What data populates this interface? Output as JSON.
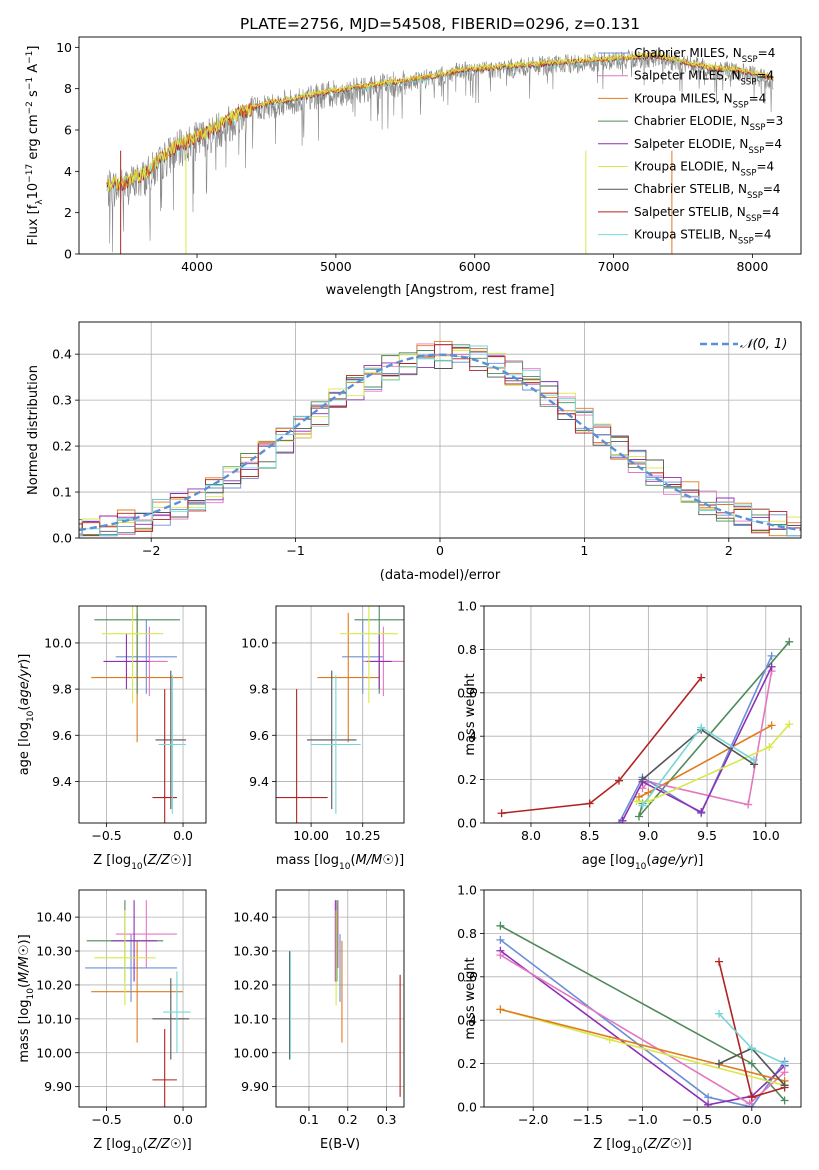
{
  "figure_title": "PLATE=2756, MJD=54508, FIBERID=0296, z=0.131",
  "colors": {
    "Chabrier MILES": "#6b8fd6",
    "Salpeter MILES": "#e377c2",
    "Kroupa MILES": "#e07b1f",
    "Chabrier ELODIE": "#4f8a5a",
    "Salpeter ELODIE": "#8e2fb4",
    "Kroupa ELODIE": "#d8e84a",
    "Chabrier STELIB": "#555555",
    "Salpeter STELIB": "#b22222",
    "Kroupa STELIB": "#76d7d7",
    "data": "#888888",
    "normal": "#5b8fd8"
  },
  "chart_data": [
    {
      "id": "spectrum",
      "type": "line",
      "title": "PLATE=2756, MJD=54508, FIBERID=0296, z=0.131",
      "xlabel": "wavelength [Angstrom, rest frame]",
      "ylabel": "Flux [fλ10⁻¹⁷ erg cm⁻² s⁻¹ A⁻¹]",
      "xlim": [
        3150,
        8350
      ],
      "ylim": [
        0,
        10.5
      ],
      "xticks": [
        4000,
        5000,
        6000,
        7000,
        8000
      ],
      "yticks": [
        0,
        2,
        4,
        6,
        8,
        10
      ],
      "continuum_x": [
        3350,
        3500,
        3650,
        3800,
        3950,
        4100,
        4300,
        4500,
        4700,
        4900,
        5100,
        5300,
        5500,
        5700,
        5900,
        6100,
        6300,
        6500,
        6700,
        6900,
        7100,
        7300,
        7500,
        7700,
        7900,
        8150
      ],
      "continuum_y": [
        3.3,
        3.5,
        4.0,
        5.0,
        5.5,
        6.0,
        6.8,
        7.3,
        7.5,
        7.8,
        8.0,
        8.2,
        8.4,
        8.6,
        8.9,
        9.0,
        9.1,
        9.2,
        9.3,
        9.4,
        9.5,
        9.6,
        9.3,
        9.0,
        8.9,
        8.5
      ],
      "legend": [
        {
          "label": "Chabrier MILES, N",
          "sub": "SSP",
          "tail": "=4",
          "key": "Chabrier MILES"
        },
        {
          "label": "Salpeter MILES, N",
          "sub": "SSP",
          "tail": "=4",
          "key": "Salpeter MILES"
        },
        {
          "label": "Kroupa MILES, N",
          "sub": "SSP",
          "tail": "=4",
          "key": "Kroupa MILES"
        },
        {
          "label": "Chabrier ELODIE, N",
          "sub": "SSP",
          "tail": "=3",
          "key": "Chabrier ELODIE"
        },
        {
          "label": "Salpeter ELODIE, N",
          "sub": "SSP",
          "tail": "=4",
          "key": "Salpeter ELODIE"
        },
        {
          "label": "Kroupa ELODIE, N",
          "sub": "SSP",
          "tail": "=4",
          "key": "Kroupa ELODIE"
        },
        {
          "label": "Chabrier STELIB, N",
          "sub": "SSP",
          "tail": "=4",
          "key": "Chabrier STELIB"
        },
        {
          "label": "Salpeter STELIB, N",
          "sub": "SSP",
          "tail": "=4",
          "key": "Salpeter STELIB"
        },
        {
          "label": "Kroupa STELIB, N",
          "sub": "SSP",
          "tail": "=4",
          "key": "Kroupa STELIB"
        }
      ],
      "grid": false,
      "legend_position": "top-right"
    },
    {
      "id": "residuals",
      "type": "line",
      "xlabel": "(data-model)/error",
      "ylabel": "Normed distribution",
      "xlim": [
        -2.5,
        2.5
      ],
      "ylim": [
        0,
        0.47
      ],
      "xticks": [
        -2,
        -1,
        0,
        1,
        2
      ],
      "yticks": [
        0.0,
        0.1,
        0.2,
        0.3,
        0.4
      ],
      "legend": "𝒩(0, 1)",
      "grid": true,
      "legend_position": "top-right"
    },
    {
      "id": "age_vs_Z",
      "type": "scatter",
      "xlabel": "Z [log10(Z/Z☉)]",
      "ylabel": "age  [log10(age/yr)]",
      "xlim": [
        -0.68,
        0.15
      ],
      "ylim": [
        9.22,
        10.16
      ],
      "xticks": [
        -0.5,
        0.0
      ],
      "yticks": [
        9.4,
        9.6,
        9.8,
        10.0
      ],
      "grid": true,
      "points": [
        {
          "key": "Chabrier MILES",
          "x": -0.24,
          "xerr": 0.2,
          "y": 9.94,
          "yerr": 0.16
        },
        {
          "key": "Salpeter MILES",
          "x": -0.22,
          "xerr": 0.12,
          "y": 9.92,
          "yerr": 0.15
        },
        {
          "key": "Kroupa MILES",
          "x": -0.3,
          "xerr": 0.3,
          "y": 9.85,
          "yerr": 0.28
        },
        {
          "key": "Chabrier ELODIE",
          "x": -0.3,
          "xerr": 0.28,
          "y": 10.1,
          "yerr": 0.32
        },
        {
          "key": "Salpeter ELODIE",
          "x": -0.37,
          "xerr": 0.15,
          "y": 9.92,
          "yerr": 0.12
        },
        {
          "key": "Kroupa ELODIE",
          "x": -0.33,
          "xerr": 0.2,
          "y": 10.04,
          "yerr": 0.3
        },
        {
          "key": "Chabrier STELIB",
          "x": -0.08,
          "xerr": 0.1,
          "y": 9.58,
          "yerr": 0.3
        },
        {
          "key": "Salpeter STELIB",
          "x": -0.12,
          "xerr": 0.08,
          "y": 9.33,
          "yerr": 0.47
        },
        {
          "key": "Kroupa STELIB",
          "x": -0.07,
          "xerr": 0.09,
          "y": 9.56,
          "yerr": 0.3
        }
      ]
    },
    {
      "id": "age_vs_mass",
      "type": "scatter",
      "xlabel": "mass [log10(M/M☉)]",
      "ylabel": "",
      "xlim": [
        9.83,
        10.45
      ],
      "ylim": [
        9.22,
        10.16
      ],
      "xticks": [
        10.0,
        10.25
      ],
      "yticks": [
        9.4,
        9.6,
        9.8,
        10.0
      ],
      "grid": true,
      "points": [
        {
          "key": "Chabrier MILES",
          "x": 10.25,
          "xerr": 0.1,
          "y": 9.94,
          "yerr": 0.16
        },
        {
          "key": "Salpeter MILES",
          "x": 10.35,
          "xerr": 0.1,
          "y": 9.92,
          "yerr": 0.15
        },
        {
          "key": "Kroupa MILES",
          "x": 10.18,
          "xerr": 0.15,
          "y": 9.85,
          "yerr": 0.28
        },
        {
          "key": "Chabrier ELODIE",
          "x": 10.33,
          "xerr": 0.12,
          "y": 10.1,
          "yerr": 0.32
        },
        {
          "key": "Salpeter ELODIE",
          "x": 10.33,
          "xerr": 0.06,
          "y": 9.92,
          "yerr": 0.12
        },
        {
          "key": "Kroupa ELODIE",
          "x": 10.28,
          "xerr": 0.14,
          "y": 10.04,
          "yerr": 0.3
        },
        {
          "key": "Chabrier STELIB",
          "x": 10.1,
          "xerr": 0.12,
          "y": 9.58,
          "yerr": 0.3
        },
        {
          "key": "Salpeter STELIB",
          "x": 9.93,
          "xerr": 0.15,
          "y": 9.33,
          "yerr": 0.47
        },
        {
          "key": "Kroupa STELIB",
          "x": 10.12,
          "xerr": 0.12,
          "y": 9.56,
          "yerr": 0.3
        }
      ]
    },
    {
      "id": "weight_vs_age",
      "type": "line",
      "xlabel": "age  [log10(age/yr)]",
      "ylabel": "mass weight",
      "xlim": [
        7.6,
        10.3
      ],
      "ylim": [
        0.0,
        1.0
      ],
      "xticks": [
        8.0,
        8.5,
        9.0,
        9.5,
        10.0
      ],
      "yticks": [
        0.0,
        0.2,
        0.4,
        0.6,
        0.8,
        1.0
      ],
      "grid": true,
      "series": [
        {
          "key": "Salpeter STELIB",
          "x": [
            7.75,
            8.5,
            8.75,
            9.45
          ],
          "y": [
            0.045,
            0.09,
            0.195,
            0.67
          ]
        },
        {
          "key": "Chabrier ELODIE",
          "x": [
            8.95,
            8.92,
            10.2
          ],
          "y": [
            0.09,
            0.03,
            0.835
          ]
        },
        {
          "key": "Kroupa MILES",
          "x": [
            8.92,
            9.0,
            10.05
          ],
          "y": [
            0.12,
            0.14,
            0.45
          ]
        },
        {
          "key": "Salpeter MILES",
          "x": [
            8.95,
            9.0,
            9.85,
            10.05
          ],
          "y": [
            0.16,
            0.19,
            0.085,
            0.7
          ]
        },
        {
          "key": "Chabrier MILES",
          "x": [
            8.75,
            8.95,
            9.45,
            10.05
          ],
          "y": [
            0.0,
            0.21,
            0.045,
            0.77
          ]
        },
        {
          "key": "Salpeter ELODIE",
          "x": [
            8.78,
            8.95,
            9.45,
            10.05
          ],
          "y": [
            0.01,
            0.19,
            0.05,
            0.72
          ]
        },
        {
          "key": "Kroupa ELODIE",
          "x": [
            8.9,
            9.0,
            10.03,
            10.2
          ],
          "y": [
            0.1,
            0.1,
            0.35,
            0.455
          ]
        },
        {
          "key": "Chabrier STELIB",
          "x": [
            8.95,
            9.45,
            9.9
          ],
          "y": [
            0.2,
            0.43,
            0.27
          ]
        },
        {
          "key": "Kroupa STELIB",
          "x": [
            8.95,
            9.45,
            9.9
          ],
          "y": [
            0.08,
            0.44,
            0.29
          ]
        }
      ]
    },
    {
      "id": "mass_vs_Z",
      "type": "scatter",
      "xlabel": "Z [log10(Z/Z☉)]",
      "ylabel": "mass [log10(M/M☉)]",
      "xlim": [
        -0.68,
        0.15
      ],
      "ylim": [
        9.84,
        10.48
      ],
      "xticks": [
        -0.5,
        0.0
      ],
      "yticks": [
        9.9,
        10.0,
        10.1,
        10.2,
        10.3,
        10.4
      ],
      "grid": true,
      "points": [
        {
          "key": "Chabrier MILES",
          "x": -0.34,
          "xerr": 0.3,
          "y": 10.25,
          "yerr": 0.1
        },
        {
          "key": "Salpeter MILES",
          "x": -0.24,
          "xerr": 0.2,
          "y": 10.35,
          "yerr": 0.1
        },
        {
          "key": "Kroupa MILES",
          "x": -0.3,
          "xerr": 0.3,
          "y": 10.18,
          "yerr": 0.15
        },
        {
          "key": "Chabrier ELODIE",
          "x": -0.38,
          "xerr": 0.25,
          "y": 10.33,
          "yerr": 0.12
        },
        {
          "key": "Salpeter ELODIE",
          "x": -0.32,
          "xerr": 0.15,
          "y": 10.33,
          "yerr": 0.12
        },
        {
          "key": "Kroupa ELODIE",
          "x": -0.38,
          "xerr": 0.2,
          "y": 10.28,
          "yerr": 0.14
        },
        {
          "key": "Chabrier STELIB",
          "x": -0.08,
          "xerr": 0.12,
          "y": 10.1,
          "yerr": 0.12
        },
        {
          "key": "Salpeter STELIB",
          "x": -0.12,
          "xerr": 0.08,
          "y": 9.92,
          "yerr": 0.15
        },
        {
          "key": "Kroupa STELIB",
          "x": -0.04,
          "xerr": 0.09,
          "y": 10.12,
          "yerr": 0.12
        }
      ]
    },
    {
      "id": "mass_vs_ebv",
      "type": "scatter",
      "xlabel": "E(B-V)",
      "ylabel": "",
      "xlim": [
        0.015,
        0.345
      ],
      "ylim": [
        9.84,
        10.48
      ],
      "xticks": [
        0.1,
        0.2,
        0.3
      ],
      "yticks": [
        9.9,
        10.0,
        10.1,
        10.2,
        10.3,
        10.4
      ],
      "grid": true,
      "points": [
        {
          "key": "Chabrier MILES",
          "x": 0.18,
          "y": 10.25,
          "yerr": 0.1
        },
        {
          "key": "Salpeter MILES",
          "x": 0.175,
          "y": 10.35,
          "yerr": 0.1
        },
        {
          "key": "Kroupa MILES",
          "x": 0.185,
          "y": 10.18,
          "yerr": 0.15
        },
        {
          "key": "Chabrier ELODIE",
          "x": 0.172,
          "y": 10.33,
          "yerr": 0.12
        },
        {
          "key": "Salpeter ELODIE",
          "x": 0.168,
          "y": 10.33,
          "yerr": 0.12
        },
        {
          "key": "Kroupa ELODIE",
          "x": 0.17,
          "y": 10.28,
          "yerr": 0.14
        },
        {
          "key": "Chabrier STELIB",
          "x": 0.05,
          "y": 10.14,
          "yerr": 0.16
        },
        {
          "key": "Salpeter STELIB",
          "x": 0.335,
          "y": 10.05,
          "yerr": 0.18
        },
        {
          "key": "Kroupa STELIB",
          "x": 0.052,
          "y": 10.14,
          "yerr": 0.16
        }
      ]
    },
    {
      "id": "weight_vs_Z",
      "type": "line",
      "xlabel": "Z [log10(Z/Z☉)]",
      "ylabel": "mass weight",
      "xlim": [
        -2.45,
        0.45
      ],
      "ylim": [
        0.0,
        1.0
      ],
      "xticks": [
        -2.0,
        -1.5,
        -1.0,
        -0.5,
        0.0
      ],
      "yticks": [
        0.0,
        0.2,
        0.4,
        0.6,
        0.8,
        1.0
      ],
      "grid": true,
      "series": [
        {
          "key": "Chabrier ELODIE",
          "x": [
            -2.3,
            0.0,
            0.3
          ],
          "y": [
            0.835,
            0.2,
            0.03
          ]
        },
        {
          "key": "Chabrier MILES",
          "x": [
            -2.3,
            -0.4,
            0.0,
            0.3
          ],
          "y": [
            0.77,
            0.045,
            0.0,
            0.21
          ]
        },
        {
          "key": "Salpeter ELODIE",
          "x": [
            -2.3,
            -0.4,
            0.0,
            0.3
          ],
          "y": [
            0.72,
            0.01,
            0.05,
            0.19
          ]
        },
        {
          "key": "Salpeter MILES",
          "x": [
            -2.3,
            -0.02,
            0.3
          ],
          "y": [
            0.7,
            0.015,
            0.16
          ]
        },
        {
          "key": "Kroupa ELODIE",
          "x": [
            -2.3,
            -1.3,
            0.3
          ],
          "y": [
            0.45,
            0.31,
            0.1
          ]
        },
        {
          "key": "Kroupa MILES",
          "x": [
            -2.3,
            0.3
          ],
          "y": [
            0.45,
            0.12
          ]
        },
        {
          "key": "Salpeter STELIB",
          "x": [
            -0.3,
            0.0,
            0.3
          ],
          "y": [
            0.67,
            0.045,
            0.09
          ]
        },
        {
          "key": "Chabrier STELIB",
          "x": [
            -0.3,
            0.0,
            0.3
          ],
          "y": [
            0.2,
            0.27,
            0.1
          ]
        },
        {
          "key": "Kroupa STELIB",
          "x": [
            -0.3,
            0.0,
            0.3
          ],
          "y": [
            0.43,
            0.27,
            0.2
          ]
        }
      ]
    }
  ]
}
